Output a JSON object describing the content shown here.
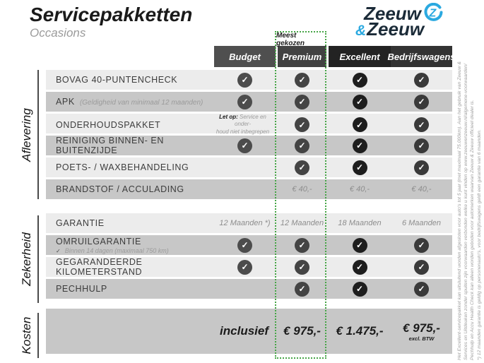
{
  "header": {
    "title": "Servicepakketten",
    "subtitle": "Occasions"
  },
  "logo": {
    "word1": "Zeeuw",
    "amp": "&",
    "word2": "Zeeuw",
    "navy": "#1b2b38",
    "blue": "#2ba9e0"
  },
  "badge": {
    "label": "Meest gekozen",
    "border_color": "#46a546"
  },
  "columns": [
    {
      "id": "budget",
      "label": "Budget",
      "header_color": "#4f4f4f",
      "check_color": "#4c4c4c"
    },
    {
      "id": "premium",
      "label": "Premium",
      "header_color": "#424242",
      "check_color": "#444444",
      "highlighted": true
    },
    {
      "id": "excellent",
      "label": "Excellent",
      "header_color": "#232323",
      "check_color": "#1e1e1e"
    },
    {
      "id": "bedrijfswagens",
      "label": "Bedrijfswagens",
      "header_color": "#333333",
      "check_color": "#3a3a3a"
    }
  ],
  "sections": [
    {
      "label": "Aflevering",
      "rows": [
        {
          "feature": "BOVAG 40-PUNTENCHECK",
          "cells": [
            "check",
            "check",
            "check",
            "check"
          ]
        },
        {
          "feature": "APK",
          "feature_note": "(Geldigheid van minimaal 12 maanden)",
          "cells": [
            "check",
            "check",
            "check",
            "check"
          ]
        },
        {
          "feature": "ONDERHOUDSPAKKET",
          "cells": [
            {
              "note_bold": "Let op:",
              "note_lines": [
                "Service en onder-",
                "houd niet inbegrepen"
              ]
            },
            "check",
            "check",
            "check"
          ]
        },
        {
          "feature": "REINIGING BINNEN- EN BUITENZIJDE",
          "cells": [
            "check",
            "check",
            "check",
            "check"
          ]
        },
        {
          "feature": "POETS- / WAXBEHANDELING",
          "cells": [
            "",
            "check",
            "check",
            "check"
          ]
        },
        {
          "feature": "BRANDSTOF / ACCULADING",
          "cells": [
            "",
            "€ 40,-",
            "€ 40,-",
            "€ 40,-"
          ]
        }
      ]
    },
    {
      "label": "Zekerheid",
      "rows": [
        {
          "feature": "GARANTIE",
          "cells": [
            "12 Maanden *)",
            "12 Maanden",
            "18 Maanden",
            "6 Maanden"
          ]
        },
        {
          "feature": "OMRUILGARANTIE",
          "feature_subcheck": "Binnen 14 dagen (maximaal 750 km)",
          "cells": [
            "check",
            "check",
            "check",
            "check"
          ]
        },
        {
          "feature": "GEGARANDEERDE KILOMETERSTAND",
          "cells": [
            "check",
            "check",
            "check",
            "check"
          ]
        },
        {
          "feature": "PECHHULP",
          "cells": [
            "",
            "check",
            "check",
            "check"
          ]
        }
      ]
    }
  ],
  "kosten": {
    "label": "Kosten",
    "prefix": "inclusief",
    "cells": [
      {
        "price": "€ 975,-"
      },
      {
        "price": "€ 1.475,-"
      },
      {
        "price": "€ 975,-",
        "note": "excl. BTW"
      }
    ]
  },
  "footnotes": [
    "Het Excellent-servicepakket kan uitsluitend worden afgesloten voor auto's tot 5 jaar (met maximaal 75.000km). Aan het gebruik van Zeeuw &",
    "Services en Uitdeuken zonder spuiten zijn voorwaarden verbonden welke u kunt vinden op www.zeeuwenzeeuw.nl/algemene-voorwaarden/",
    "Pechhulp en Accu Health Check kan alleen worden geboden voor automerken waarvan Zeeuw & Zeeuw officieel dealer is.",
    "*) 12 maanden garantie is geldig op personenauto's, voor bedrijfswagens geldt een garantie van 6 maanden."
  ]
}
